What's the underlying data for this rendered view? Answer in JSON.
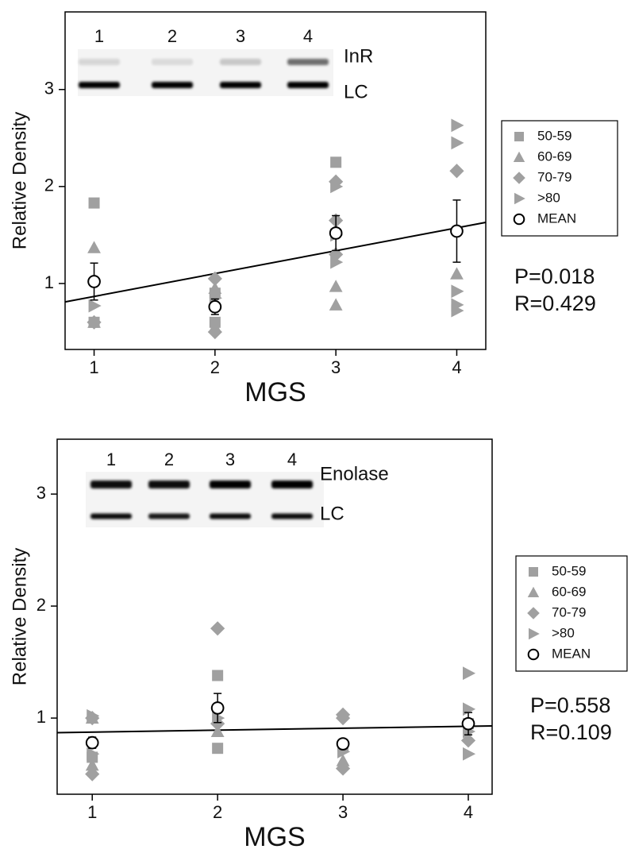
{
  "chart_data": [
    {
      "type": "scatter",
      "xlabel": "MGS",
      "ylabel": "Relative Density",
      "xlim": [
        0.76,
        4.24
      ],
      "xticks": [
        1,
        2,
        3,
        4
      ],
      "ylim": [
        0.32,
        3.8
      ],
      "yticks": [
        1,
        2,
        3
      ],
      "series": [
        {
          "name": "50-59",
          "color": "#a0a0a0",
          "marker": "square",
          "x": [
            1,
            1,
            2,
            2,
            3
          ],
          "values": [
            1.83,
            0.6,
            0.9,
            0.6,
            2.25
          ]
        },
        {
          "name": "60-69",
          "color": "#a0a0a0",
          "marker": "triangle-up",
          "x": [
            1,
            1,
            2,
            2,
            3,
            3,
            4
          ],
          "values": [
            1.37,
            0.6,
            0.95,
            0.55,
            0.97,
            0.78,
            1.1
          ]
        },
        {
          "name": "70-79",
          "color": "#a0a0a0",
          "marker": "diamond",
          "x": [
            1,
            2,
            2,
            3,
            3,
            3,
            4
          ],
          "values": [
            0.6,
            1.05,
            0.5,
            2.05,
            1.65,
            1.3,
            2.16
          ]
        },
        {
          "name": ">80",
          "color": "#a0a0a0",
          "marker": "triangle-right",
          "x": [
            1,
            2,
            3,
            3,
            3,
            4,
            4,
            4,
            4,
            4
          ],
          "values": [
            0.77,
            0.85,
            2.0,
            1.5,
            1.22,
            2.63,
            2.45,
            0.92,
            0.78,
            0.72
          ]
        },
        {
          "name": "MEAN",
          "color": "#000000",
          "marker": "circle",
          "x": [
            1,
            2,
            3,
            4
          ],
          "values": [
            1.02,
            0.76,
            1.52,
            1.54
          ],
          "errors": [
            0.19,
            0.08,
            0.18,
            0.32
          ]
        }
      ],
      "fit_line": {
        "x": [
          0.76,
          4.24
        ],
        "y": [
          0.81,
          1.63
        ]
      },
      "annotations": [
        "P=0.018",
        "R=0.429"
      ],
      "blot": {
        "lanes": [
          "1",
          "2",
          "3",
          "4"
        ],
        "bands": [
          "InR",
          "LC"
        ]
      }
    },
    {
      "type": "scatter",
      "xlabel": "MGS",
      "ylabel": "Relative Density",
      "xlim": [
        0.72,
        4.19
      ],
      "xticks": [
        1,
        2,
        3,
        4
      ],
      "ylim": [
        0.32,
        3.49
      ],
      "yticks": [
        1,
        2,
        3
      ],
      "series": [
        {
          "name": "50-59",
          "color": "#a0a0a0",
          "marker": "square",
          "x": [
            1,
            2,
            2,
            3,
            4
          ],
          "values": [
            0.65,
            1.38,
            0.73,
            0.75,
            0.95
          ]
        },
        {
          "name": "60-69",
          "color": "#a0a0a0",
          "marker": "triangle-up",
          "x": [
            1,
            1,
            2,
            3
          ],
          "values": [
            1.0,
            0.58,
            0.88,
            0.62
          ]
        },
        {
          "name": "70-79",
          "color": "#a0a0a0",
          "marker": "diamond",
          "x": [
            1,
            1,
            2,
            2,
            3,
            3,
            3,
            4
          ],
          "values": [
            1.0,
            0.5,
            1.8,
            0.95,
            1.03,
            1.0,
            0.55,
            0.8
          ]
        },
        {
          "name": ">80",
          "color": "#a0a0a0",
          "marker": "triangle-right",
          "x": [
            1,
            1,
            2,
            3,
            4,
            4,
            4,
            4
          ],
          "values": [
            1.02,
            0.68,
            1.0,
            0.7,
            1.4,
            1.08,
            0.68,
            0.88
          ]
        },
        {
          "name": "MEAN",
          "color": "#000000",
          "marker": "circle",
          "x": [
            1,
            2,
            3,
            4
          ],
          "values": [
            0.78,
            1.09,
            0.77,
            0.95
          ],
          "errors": [
            0.05,
            0.13,
            0.04,
            0.1
          ]
        }
      ],
      "fit_line": {
        "x": [
          0.72,
          4.19
        ],
        "y": [
          0.87,
          0.93
        ]
      },
      "annotations": [
        "P=0.558",
        "R=0.109"
      ],
      "blot": {
        "lanes": [
          "1",
          "2",
          "3",
          "4"
        ],
        "bands": [
          "Enolase",
          "LC"
        ]
      }
    }
  ]
}
